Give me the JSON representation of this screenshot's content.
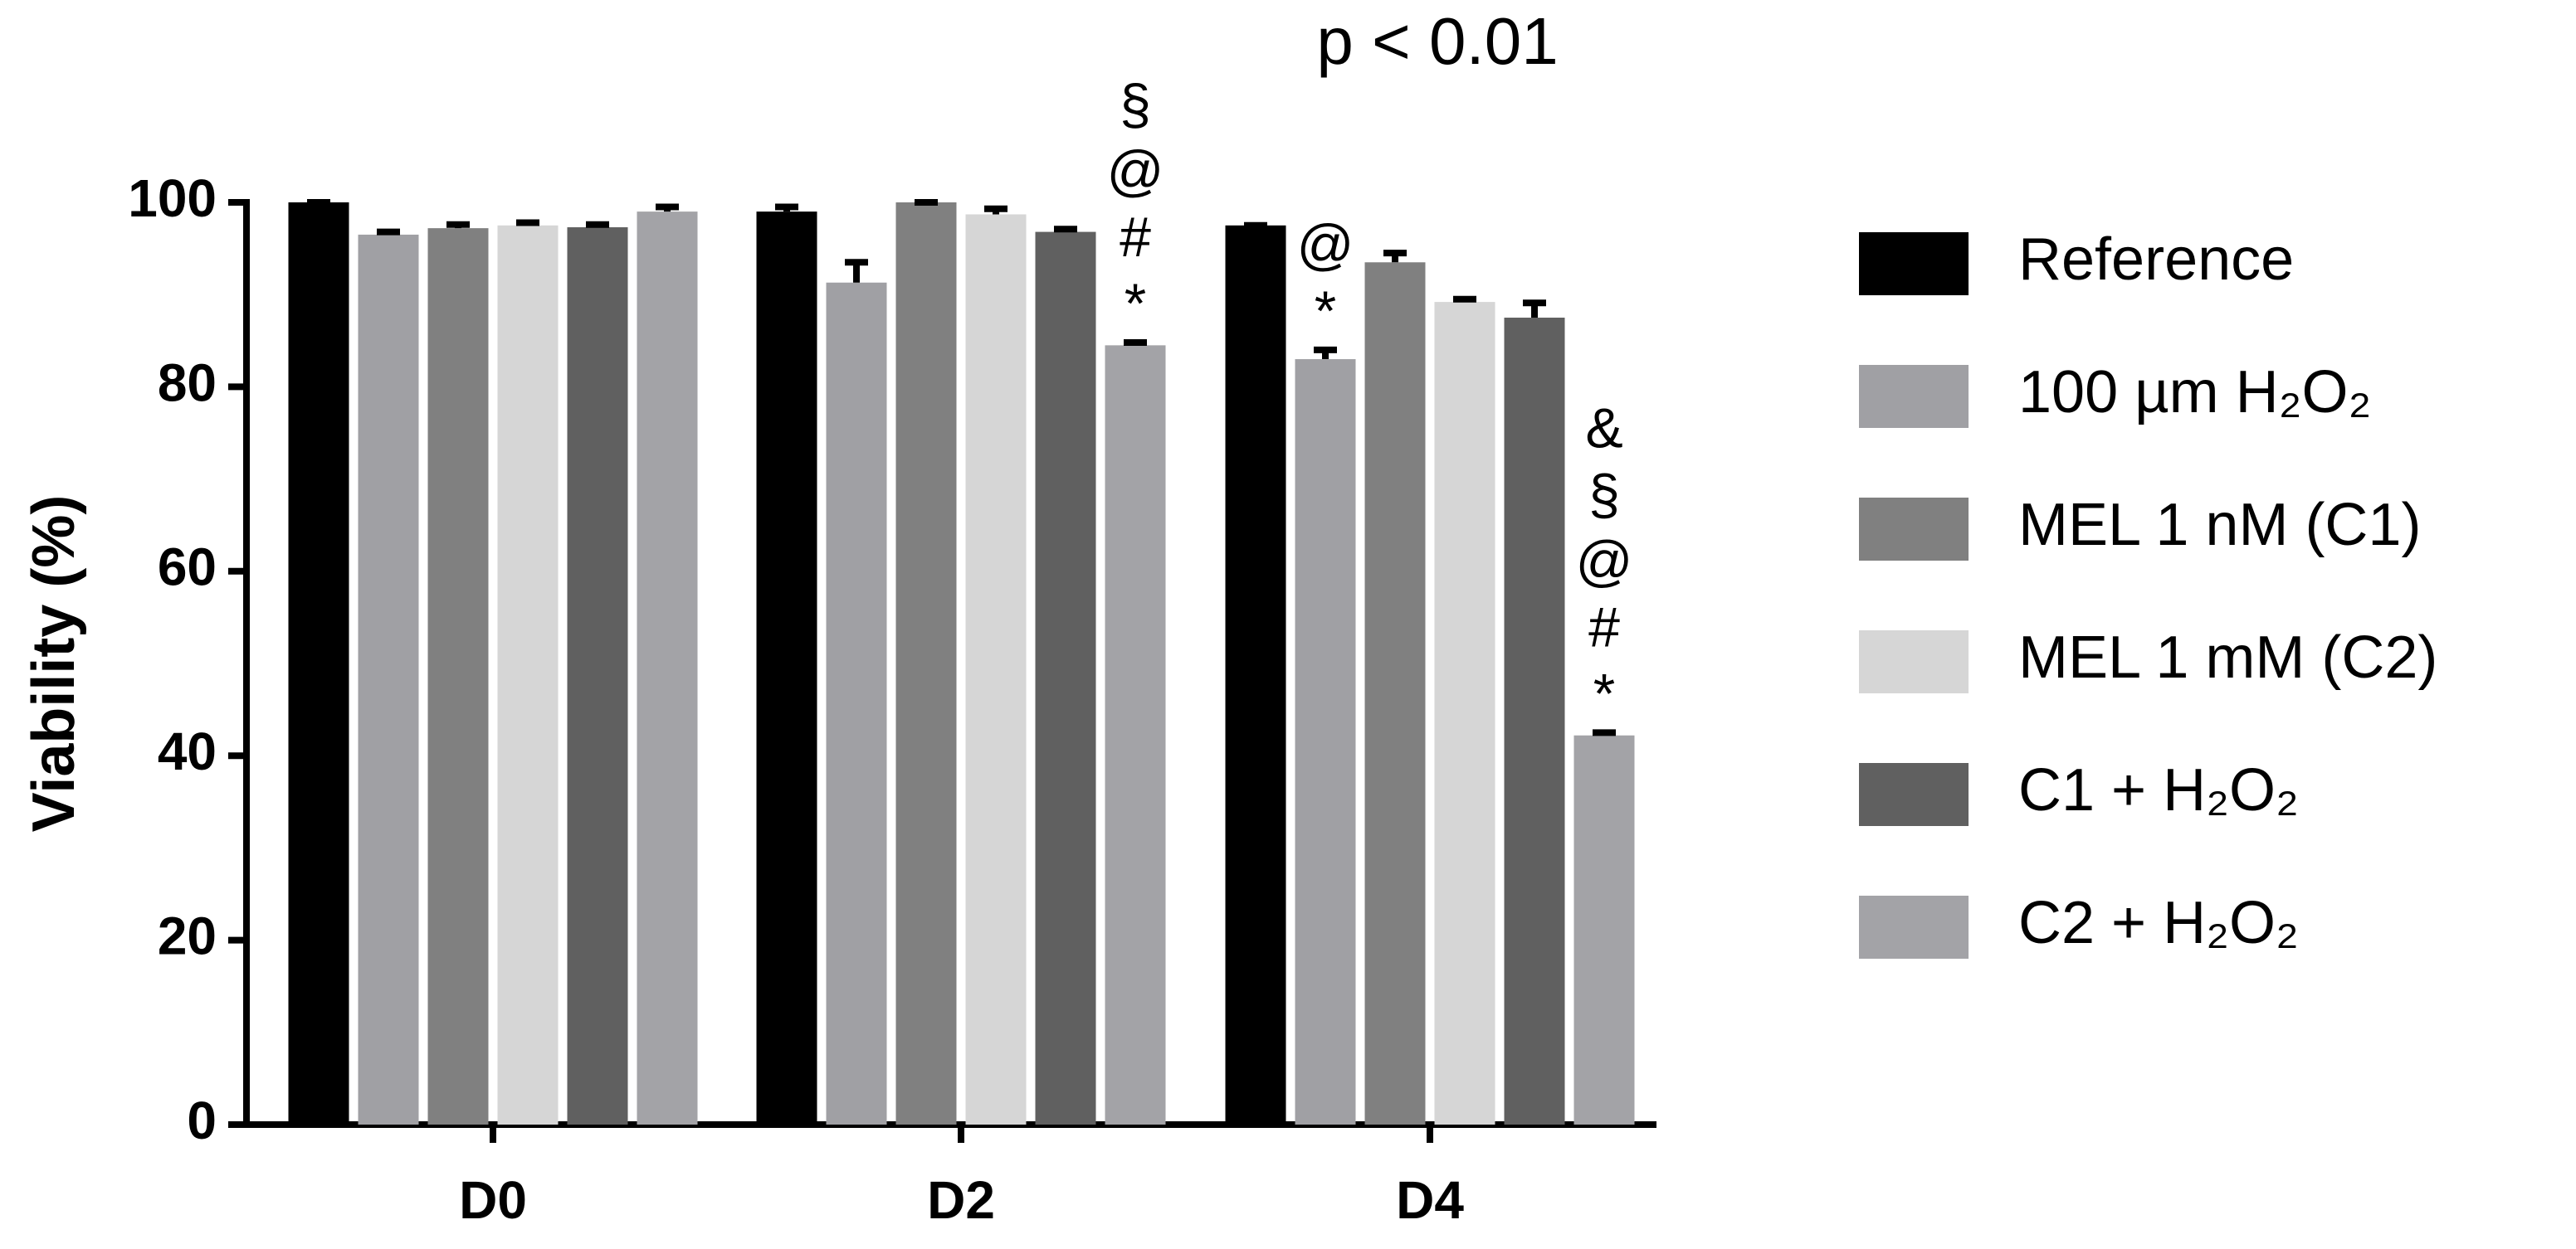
{
  "chart_data": {
    "type": "bar",
    "title": "p < 0.01",
    "y_label": "Viability (%)",
    "categories": [
      "D0",
      "D2",
      "D4"
    ],
    "ylim": [
      0,
      100
    ],
    "yticks": [
      0,
      20,
      40,
      60,
      80,
      100
    ],
    "series": [
      {
        "name": "Reference",
        "color": "#000000",
        "values": [
          100,
          99,
          97.5
        ],
        "errors": [
          0,
          0.5,
          0
        ]
      },
      {
        "name": "100 µm H₂O₂",
        "color": "#a0a0a4",
        "values": [
          96.5,
          91.3,
          83
        ],
        "errors": [
          0.3,
          2.2,
          1
        ],
        "annotations": [
          null,
          null,
          [
            "@",
            "*"
          ]
        ]
      },
      {
        "name": "MEL 1 nM (C1)",
        "color": "#808080",
        "values": [
          97.2,
          100,
          93.5
        ],
        "errors": [
          0.4,
          0,
          1
        ]
      },
      {
        "name": "MEL 1 mM (C2)",
        "color": "#d6d6d6",
        "values": [
          97.5,
          98.7,
          89.2
        ],
        "errors": [
          0.3,
          0.6,
          0.3
        ]
      },
      {
        "name": "C1 + H₂O₂",
        "color": "#606060",
        "values": [
          97.3,
          96.8,
          87.5
        ],
        "errors": [
          0.3,
          0.3,
          1.6
        ]
      },
      {
        "name": "C2 + H₂O₂",
        "color": "#a3a3a7",
        "values": [
          99,
          84.5,
          42.2
        ],
        "errors": [
          0.5,
          0.3,
          0.3
        ],
        "annotations": [
          null,
          [
            "§",
            "@",
            "#",
            "*"
          ],
          [
            "&",
            "§",
            "@",
            "#",
            "*"
          ]
        ]
      }
    ]
  }
}
